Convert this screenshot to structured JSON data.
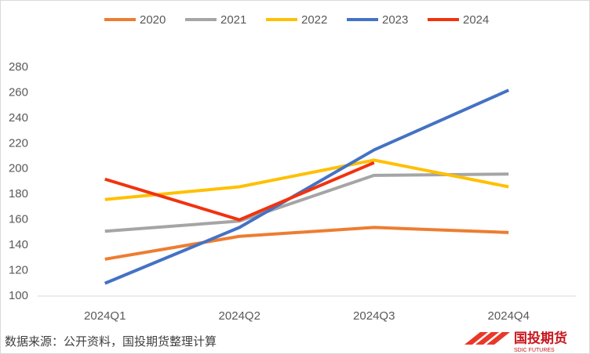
{
  "chart_data": {
    "type": "line",
    "categories": [
      "2024Q1",
      "2024Q2",
      "2024Q3",
      "2024Q4"
    ],
    "series": [
      {
        "name": "2020",
        "color": "#ed7d31",
        "values": [
          129,
          147,
          154,
          150
        ]
      },
      {
        "name": "2021",
        "color": "#a5a5a5",
        "values": [
          151,
          159,
          195,
          196
        ]
      },
      {
        "name": "2022",
        "color": "#ffc000",
        "values": [
          176,
          186,
          207,
          186
        ]
      },
      {
        "name": "2023",
        "color": "#4472c4",
        "values": [
          110,
          154,
          215,
          262
        ]
      },
      {
        "name": "2024",
        "color": "#f2320e",
        "values": [
          192,
          160,
          205,
          null
        ]
      }
    ],
    "ylim": [
      100,
      280
    ],
    "yticks": [
      100,
      120,
      140,
      160,
      180,
      200,
      220,
      240,
      260,
      280
    ],
    "grid": false,
    "legend": "top"
  },
  "footer": {
    "source": "数据来源：公开资料，国投期货整理计算",
    "logo": "国投期货",
    "logo_sub": "SDIC FUTURES"
  }
}
